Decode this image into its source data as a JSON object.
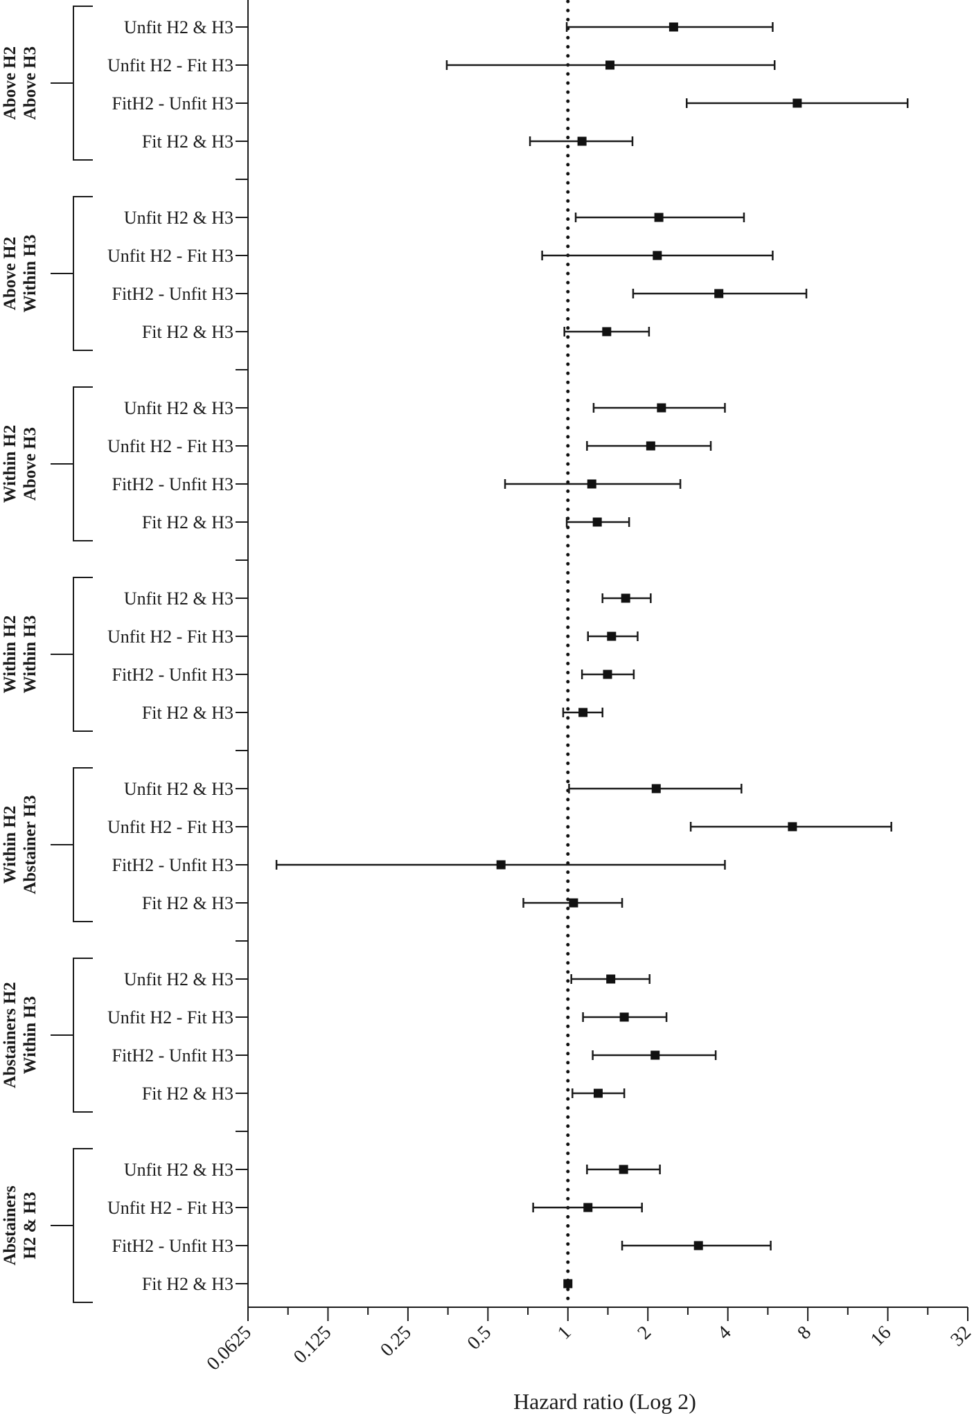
{
  "chart_data": {
    "type": "forest",
    "xlabel": "Hazard ratio (Log 2)",
    "xscale": "log2",
    "xlim": [
      0.0625,
      32
    ],
    "xticks": [
      "0.0625",
      "0.125",
      "0.25",
      "0.5",
      "1",
      "2",
      "4",
      "8",
      "16",
      "32"
    ],
    "xtick_values": [
      0.0625,
      0.125,
      0.25,
      0.5,
      1,
      2,
      4,
      8,
      16,
      32
    ],
    "reference_line": {
      "x": 1,
      "style": "dotted"
    },
    "groups": [
      {
        "label_lines": [
          "Above H2",
          "Above H3"
        ],
        "rows": [
          {
            "label": "Unfit H2 & H3",
            "hr": 2.5,
            "lo": 0.99,
            "hi": 5.9
          },
          {
            "label": "Unfit H2 - Fit H3",
            "hr": 1.44,
            "lo": 0.35,
            "hi": 6.0
          },
          {
            "label": "FitH2 - Unfit H3",
            "hr": 7.3,
            "lo": 2.8,
            "hi": 19.0
          },
          {
            "label": "Fit H2 & H3",
            "hr": 1.13,
            "lo": 0.72,
            "hi": 1.75
          }
        ]
      },
      {
        "label_lines": [
          "Above H2",
          "Within H3"
        ],
        "rows": [
          {
            "label": "Unfit H2 & H3",
            "hr": 2.2,
            "lo": 1.07,
            "hi": 4.6
          },
          {
            "label": "Unfit H2 - Fit H3",
            "hr": 2.17,
            "lo": 0.8,
            "hi": 5.9
          },
          {
            "label": "FitH2 - Unfit H3",
            "hr": 3.7,
            "lo": 1.76,
            "hi": 7.9
          },
          {
            "label": "Fit H2 & H3",
            "hr": 1.4,
            "lo": 0.97,
            "hi": 2.02
          }
        ]
      },
      {
        "label_lines": [
          "Within H2",
          "Above H3"
        ],
        "rows": [
          {
            "label": "Unfit H2 & H3",
            "hr": 2.25,
            "lo": 1.25,
            "hi": 3.9
          },
          {
            "label": "Unfit H2 - Fit H3",
            "hr": 2.05,
            "lo": 1.18,
            "hi": 3.45
          },
          {
            "label": "FitH2 - Unfit H3",
            "hr": 1.23,
            "lo": 0.58,
            "hi": 2.65
          },
          {
            "label": "Fit H2 & H3",
            "hr": 1.29,
            "lo": 0.99,
            "hi": 1.7
          }
        ]
      },
      {
        "label_lines": [
          "Within H2",
          "Within H3"
        ],
        "rows": [
          {
            "label": "Unfit H2 & H3",
            "hr": 1.65,
            "lo": 1.35,
            "hi": 2.05
          },
          {
            "label": "Unfit H2 - Fit H3",
            "hr": 1.46,
            "lo": 1.19,
            "hi": 1.83
          },
          {
            "label": "FitH2 - Unfit H3",
            "hr": 1.41,
            "lo": 1.13,
            "hi": 1.77
          },
          {
            "label": "Fit H2 & H3",
            "hr": 1.14,
            "lo": 0.96,
            "hi": 1.35
          }
        ]
      },
      {
        "label_lines": [
          "Within H2",
          "Abstainer H3"
        ],
        "rows": [
          {
            "label": "Unfit H2 & H3",
            "hr": 2.15,
            "lo": 1.01,
            "hi": 4.5
          },
          {
            "label": "Unfit H2 - Fit H3",
            "hr": 7.0,
            "lo": 2.9,
            "hi": 16.5
          },
          {
            "label": "FitH2 - Unfit H3",
            "hr": 0.56,
            "lo": 0.08,
            "hi": 3.9
          },
          {
            "label": "Fit H2 & H3",
            "hr": 1.05,
            "lo": 0.68,
            "hi": 1.6
          }
        ]
      },
      {
        "label_lines": [
          "Abstainers H2",
          "Within H3"
        ],
        "rows": [
          {
            "label": "Unfit H2 & H3",
            "hr": 1.45,
            "lo": 1.03,
            "hi": 2.03
          },
          {
            "label": "Unfit H2 - Fit H3",
            "hr": 1.63,
            "lo": 1.14,
            "hi": 2.35
          },
          {
            "label": "FitH2 - Unfit H3",
            "hr": 2.13,
            "lo": 1.24,
            "hi": 3.6
          },
          {
            "label": "Fit H2 & H3",
            "hr": 1.3,
            "lo": 1.04,
            "hi": 1.63
          }
        ]
      },
      {
        "label_lines": [
          "Abstainers",
          "H2 & H3"
        ],
        "rows": [
          {
            "label": "Unfit H2 & H3",
            "hr": 1.62,
            "lo": 1.18,
            "hi": 2.22
          },
          {
            "label": "Unfit H2 - Fit H3",
            "hr": 1.19,
            "lo": 0.74,
            "hi": 1.9
          },
          {
            "label": "FitH2 - Unfit H3",
            "hr": 3.1,
            "lo": 1.6,
            "hi": 5.8
          },
          {
            "label": "Fit H2 & H3",
            "hr": 1.0
          }
        ]
      }
    ]
  }
}
